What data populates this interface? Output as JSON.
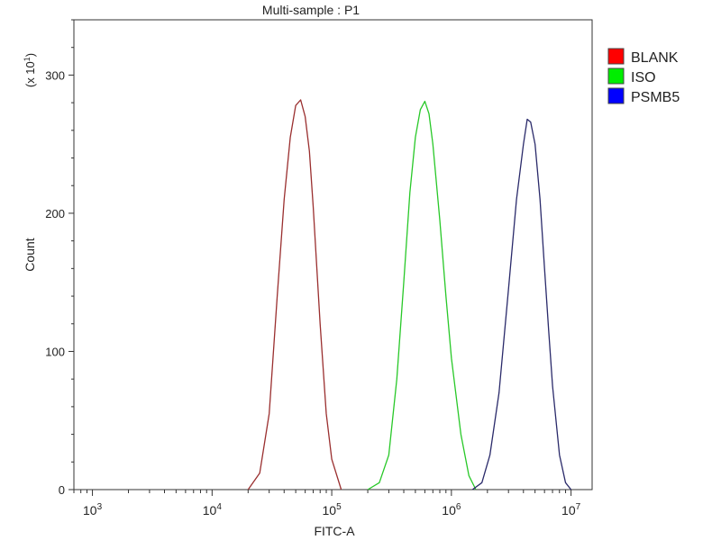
{
  "chart_data": {
    "type": "line",
    "title": "Multi-sample : P1",
    "xlabel": "FITC-A",
    "ylabel": "Count",
    "y_multiplier_label": "(x 10",
    "y_multiplier_exp": "1",
    "x_scale": "log",
    "xlim": [
      700,
      15000000
    ],
    "ylim": [
      0,
      340
    ],
    "x_ticks": [
      {
        "value": 1000,
        "base": "10",
        "exp": "3"
      },
      {
        "value": 10000,
        "base": "10",
        "exp": "4"
      },
      {
        "value": 100000,
        "base": "10",
        "exp": "5"
      },
      {
        "value": 1000000,
        "base": "10",
        "exp": "6"
      },
      {
        "value": 10000000,
        "base": "10",
        "exp": "7"
      }
    ],
    "y_ticks": [
      {
        "value": 0,
        "label": "0"
      },
      {
        "value": 100,
        "label": "100"
      },
      {
        "value": 200,
        "label": "200"
      },
      {
        "value": 300,
        "label": "300"
      }
    ],
    "grid": false,
    "legend_position": "right",
    "series": [
      {
        "name": "BLANK",
        "color": "#ff0000",
        "line_color": "#9a2f2f",
        "x": [
          20000,
          25000,
          30000,
          35000,
          40000,
          45000,
          50000,
          55000,
          60000,
          65000,
          70000,
          80000,
          90000,
          100000,
          120000
        ],
        "y": [
          0,
          12,
          55,
          140,
          210,
          255,
          278,
          282,
          270,
          245,
          205,
          120,
          55,
          22,
          0
        ]
      },
      {
        "name": "ISO",
        "color": "#00ee00",
        "line_color": "#28c828",
        "x": [
          200000,
          250000,
          300000,
          350000,
          400000,
          450000,
          500000,
          550000,
          600000,
          650000,
          700000,
          800000,
          900000,
          1000000,
          1200000,
          1400000,
          1600000
        ],
        "y": [
          0,
          5,
          25,
          80,
          150,
          215,
          255,
          275,
          281,
          272,
          250,
          195,
          140,
          95,
          40,
          10,
          0
        ]
      },
      {
        "name": "PSMB5",
        "color": "#0000ff",
        "line_color": "#2a2a6a",
        "x": [
          1500000,
          1800000,
          2100000,
          2500000,
          3000000,
          3500000,
          4000000,
          4300000,
          4600000,
          5000000,
          5500000,
          6000000,
          6500000,
          7000000,
          8000000,
          9000000,
          10000000
        ],
        "y": [
          0,
          5,
          25,
          70,
          145,
          210,
          250,
          268,
          266,
          250,
          210,
          160,
          115,
          75,
          25,
          5,
          0
        ]
      }
    ]
  }
}
